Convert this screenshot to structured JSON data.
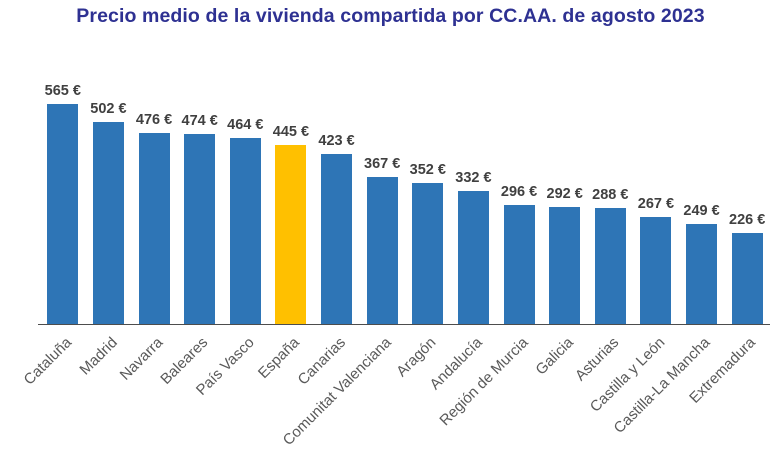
{
  "title": "Precio medio de la vivienda compartida por CC.AA. de agosto 2023",
  "colors": {
    "bar_default": "#2E75B6",
    "bar_highlight": "#FFC000",
    "title_text": "#2E3192",
    "value_label_text": "#404040",
    "axis_label_text": "#595959",
    "axis_line": "#4d4d4d",
    "background": "#ffffff"
  },
  "chart_data": {
    "type": "bar",
    "title": "Precio medio de la vivienda compartida por CC.AA. de agosto 2023",
    "categories": [
      "Cataluña",
      "Madrid",
      "Navarra",
      "Baleares",
      "País Vasco",
      "España",
      "Canarias",
      "Comunitat Valenciana",
      "Aragón",
      "Andalucía",
      "Región de Murcia",
      "Galicia",
      "Asturias",
      "Castilla y León",
      "Castilla-La Mancha",
      "Extremadura"
    ],
    "values": [
      565,
      502,
      476,
      474,
      464,
      445,
      423,
      367,
      352,
      332,
      296,
      292,
      288,
      267,
      249,
      226
    ],
    "value_labels": [
      "565 €",
      "502 €",
      "476 €",
      "474 €",
      "464 €",
      "445 €",
      "423 €",
      "367 €",
      "352 €",
      "332 €",
      "296 €",
      "292 €",
      "288 €",
      "267 €",
      "249 €",
      "226 €"
    ],
    "unit": "€",
    "highlight_category": "España",
    "highlight_index": 5,
    "xlabel": "",
    "ylabel": "",
    "ylim": [
      0,
      600
    ],
    "grid": false,
    "legend": false,
    "y_axis_visible": false,
    "x_tick_rotation": 45,
    "data_labels": true
  }
}
